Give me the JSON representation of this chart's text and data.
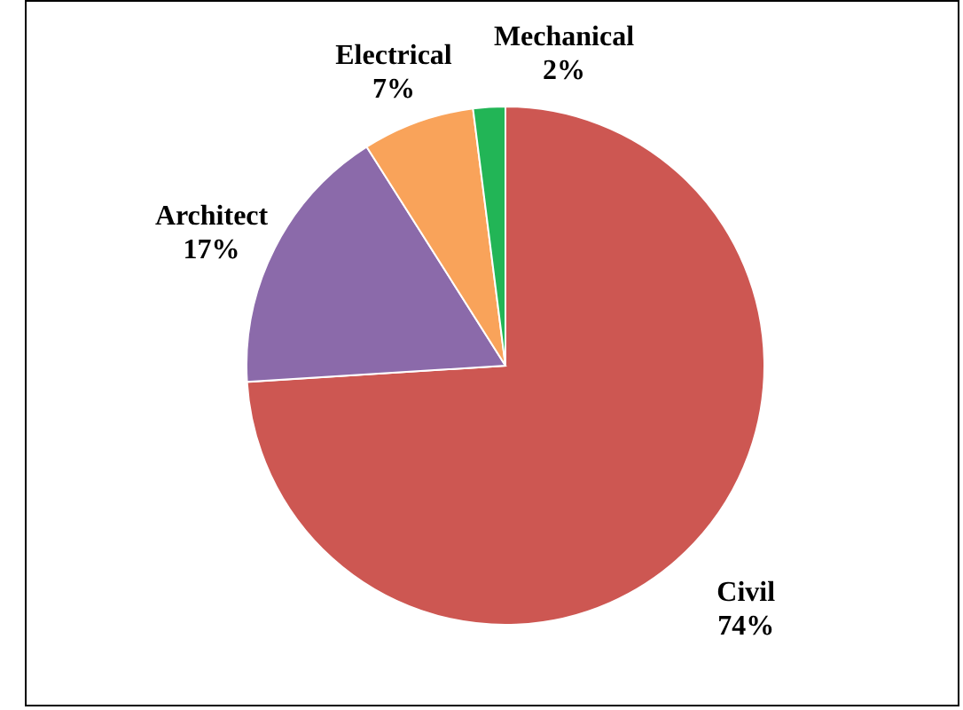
{
  "chart_data": {
    "type": "pie",
    "categories": [
      "Civil",
      "Architect",
      "Electrical",
      "Mechanical"
    ],
    "values": [
      74,
      17,
      7,
      2
    ],
    "colors": [
      "#cd5752",
      "#8b6aaa",
      "#f9a35a",
      "#22b556"
    ],
    "value_labels": [
      "74%",
      "17%",
      "7%",
      "2%"
    ]
  }
}
